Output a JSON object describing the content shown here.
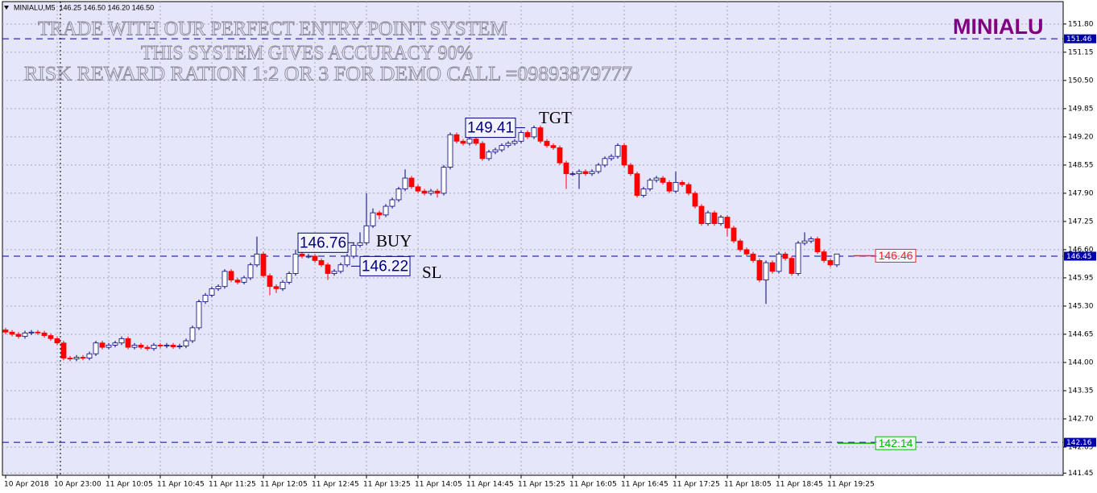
{
  "chart_data": {
    "type": "candlestick",
    "header": "MINIALU,M5  146.25 146.50 146.20 146.50",
    "symbol": "MINIALU",
    "watermark": [
      "TRADE WITH OUR PERFECT ENTRY POINT SYSTEM",
      "THIS SYSTEM GIVES ACCURACY 90%",
      "RISK REWARD RATION 1:2 OR 3 FOR DEMO CALL =09893879777"
    ],
    "categories": [
      "10 Apr 2018",
      null,
      null,
      null,
      null,
      null,
      null,
      null,
      "10 Apr 23:00",
      null,
      null,
      null,
      null,
      null,
      null,
      null,
      "11 Apr 10:05",
      null,
      null,
      null,
      null,
      null,
      null,
      null,
      "11 Apr 10:45",
      null,
      null,
      null,
      null,
      null,
      null,
      null,
      "11 Apr 11:25",
      null,
      null,
      null,
      null,
      null,
      null,
      null,
      "11 Apr 12:05",
      null,
      null,
      null,
      null,
      null,
      null,
      null,
      "11 Apr 12:45",
      null,
      null,
      null,
      null,
      null,
      null,
      null,
      "11 Apr 13:25",
      null,
      null,
      null,
      null,
      null,
      null,
      null,
      "11 Apr 14:05",
      null,
      null,
      null,
      null,
      null,
      null,
      null,
      "11 Apr 14:45",
      null,
      null,
      null,
      null,
      null,
      null,
      null,
      "11 Apr 15:25",
      null,
      null,
      null,
      null,
      null,
      null,
      null,
      "11 Apr 16:05",
      null,
      null,
      null,
      null,
      null,
      null,
      null,
      "11 Apr 16:45",
      null,
      null,
      null,
      null,
      null,
      null,
      null,
      "11 Apr 17:25",
      null,
      null,
      null,
      null,
      null,
      null,
      null,
      "11 Apr 18:05",
      null,
      null,
      null,
      null,
      null,
      null,
      null,
      "11 Apr 18:45",
      null,
      null,
      null,
      null,
      null,
      null,
      null,
      "11 Apr 19:25",
      null
    ],
    "open": [
      144.75,
      144.7,
      144.65,
      144.6,
      144.68,
      144.7,
      144.68,
      144.62,
      144.55,
      144.45,
      144.1,
      144.08,
      144.12,
      144.1,
      144.2,
      144.45,
      144.35,
      144.4,
      144.45,
      144.55,
      144.35,
      144.4,
      144.35,
      144.32,
      144.4,
      144.38,
      144.4,
      144.36,
      144.38,
      144.5,
      144.8,
      145.4,
      145.55,
      145.7,
      145.75,
      146.1,
      145.9,
      145.85,
      145.95,
      146.25,
      146.5,
      146.0,
      145.75,
      145.7,
      145.85,
      146.05,
      146.5,
      146.45,
      146.45,
      146.35,
      146.25,
      146.05,
      146.1,
      146.25,
      146.45,
      146.7,
      146.76,
      147.15,
      147.45,
      147.4,
      147.6,
      147.75,
      148.0,
      148.25,
      148.05,
      147.95,
      147.9,
      147.95,
      147.9,
      148.5,
      149.25,
      149.1,
      149.05,
      149.15,
      149.05,
      148.7,
      148.85,
      148.9,
      149.0,
      149.05,
      149.1,
      149.3,
      149.2,
      149.41,
      149.1,
      149.0,
      148.95,
      148.6,
      148.35,
      148.35,
      148.4,
      148.35,
      148.4,
      148.55,
      148.7,
      148.75,
      149.0,
      148.55,
      148.35,
      147.85,
      148.0,
      148.2,
      148.25,
      148.15,
      147.95,
      148.15,
      148.1,
      147.9,
      147.6,
      147.2,
      147.45,
      147.2,
      147.35,
      147.1,
      146.8,
      146.6,
      146.5,
      146.35,
      145.9,
      146.3,
      146.1,
      146.5,
      146.4,
      146.05,
      146.75,
      146.8,
      146.85,
      146.55,
      146.35,
      146.25
    ],
    "high": [
      144.8,
      144.75,
      144.7,
      144.73,
      144.75,
      144.75,
      144.73,
      144.67,
      144.6,
      144.5,
      144.15,
      144.17,
      144.17,
      144.25,
      144.5,
      144.5,
      144.45,
      144.5,
      144.6,
      144.6,
      144.45,
      144.45,
      144.4,
      144.45,
      144.45,
      144.45,
      144.45,
      144.43,
      144.55,
      144.85,
      145.45,
      145.6,
      145.75,
      145.8,
      146.15,
      146.15,
      145.95,
      146.0,
      146.3,
      146.9,
      146.55,
      146.05,
      145.8,
      145.9,
      146.1,
      146.6,
      146.55,
      146.5,
      146.5,
      146.4,
      146.3,
      146.15,
      146.3,
      146.5,
      146.75,
      147.0,
      147.9,
      147.55,
      147.5,
      147.65,
      147.8,
      148.05,
      148.45,
      148.3,
      148.1,
      148.0,
      148.0,
      148.0,
      148.55,
      149.3,
      149.3,
      149.15,
      149.2,
      149.2,
      149.1,
      148.9,
      148.95,
      149.05,
      149.1,
      149.15,
      149.35,
      149.35,
      149.46,
      149.46,
      149.15,
      149.05,
      149.0,
      148.65,
      148.4,
      148.45,
      148.45,
      148.45,
      148.6,
      148.75,
      148.8,
      149.05,
      149.05,
      148.6,
      148.4,
      148.05,
      148.25,
      148.3,
      148.3,
      148.2,
      148.4,
      148.2,
      148.15,
      147.95,
      147.65,
      147.5,
      147.5,
      147.4,
      147.4,
      147.15,
      146.85,
      146.65,
      146.55,
      146.4,
      146.35,
      146.35,
      146.55,
      146.55,
      146.45,
      146.8,
      147.0,
      146.9,
      146.9,
      146.6,
      146.4,
      146.5
    ],
    "low": [
      144.65,
      144.6,
      144.55,
      144.55,
      144.63,
      144.63,
      144.57,
      144.5,
      144.4,
      144.05,
      144.03,
      144.03,
      144.05,
      144.05,
      144.15,
      144.3,
      144.3,
      144.35,
      144.4,
      144.3,
      144.3,
      144.3,
      144.27,
      144.27,
      144.33,
      144.33,
      144.31,
      144.31,
      144.33,
      144.45,
      144.75,
      145.35,
      145.5,
      145.65,
      145.7,
      145.85,
      145.8,
      145.8,
      145.9,
      146.2,
      145.95,
      145.55,
      145.6,
      145.65,
      145.8,
      146.0,
      146.4,
      146.4,
      146.3,
      146.2,
      145.9,
      146.0,
      146.05,
      146.2,
      146.4,
      146.65,
      146.7,
      147.1,
      147.3,
      147.35,
      147.55,
      147.7,
      147.95,
      148.0,
      147.9,
      147.85,
      147.85,
      147.8,
      147.85,
      148.45,
      149.05,
      149.0,
      149.0,
      149.0,
      148.65,
      148.65,
      148.8,
      148.85,
      148.95,
      149.0,
      149.05,
      149.15,
      149.15,
      149.05,
      148.95,
      148.9,
      148.55,
      148.0,
      148.3,
      148.0,
      148.3,
      148.3,
      148.35,
      148.5,
      148.65,
      148.7,
      148.5,
      148.3,
      147.8,
      147.8,
      147.95,
      148.15,
      148.1,
      147.9,
      147.9,
      148.05,
      147.85,
      147.55,
      147.15,
      147.15,
      147.15,
      147.15,
      146.9,
      146.75,
      146.55,
      146.45,
      146.3,
      145.85,
      145.35,
      146.05,
      146.05,
      146.35,
      146.0,
      146.0,
      146.7,
      146.75,
      146.5,
      146.3,
      146.2,
      146.2
    ],
    "close": [
      144.7,
      144.65,
      144.6,
      144.68,
      144.7,
      144.68,
      144.62,
      144.55,
      144.45,
      144.1,
      144.08,
      144.12,
      144.1,
      144.2,
      144.45,
      144.35,
      144.4,
      144.45,
      144.55,
      144.35,
      144.4,
      144.35,
      144.32,
      144.4,
      144.38,
      144.4,
      144.36,
      144.38,
      144.5,
      144.8,
      145.4,
      145.55,
      145.7,
      145.75,
      146.1,
      145.9,
      145.85,
      145.95,
      146.25,
      146.5,
      146.0,
      145.75,
      145.7,
      145.85,
      146.05,
      146.5,
      146.45,
      146.45,
      146.35,
      146.25,
      146.05,
      146.1,
      146.25,
      146.45,
      146.7,
      146.76,
      147.15,
      147.45,
      147.4,
      147.6,
      147.75,
      148.0,
      148.25,
      148.05,
      147.95,
      147.9,
      147.95,
      147.9,
      148.5,
      149.25,
      149.1,
      149.05,
      149.15,
      149.05,
      148.7,
      148.85,
      148.9,
      149.0,
      149.05,
      149.1,
      149.3,
      149.2,
      149.41,
      149.1,
      149.0,
      148.95,
      148.6,
      148.35,
      148.35,
      148.4,
      148.35,
      148.4,
      148.55,
      148.7,
      148.75,
      149.0,
      148.55,
      148.35,
      147.85,
      148.0,
      148.2,
      148.25,
      148.15,
      147.95,
      148.15,
      148.1,
      147.9,
      147.6,
      147.2,
      147.45,
      147.2,
      147.35,
      147.1,
      146.8,
      146.6,
      146.5,
      146.35,
      145.9,
      146.3,
      146.1,
      146.5,
      146.4,
      146.05,
      146.75,
      146.8,
      146.85,
      146.55,
      146.35,
      146.25,
      146.5
    ],
    "up_color": "#ffffff",
    "up_border": "#000080",
    "down_color": "#ff0000",
    "ylim": [
      141.4,
      152.02
    ],
    "yticks": [
      {
        "value": 151.8,
        "label": "151.80"
      },
      {
        "value": 151.15,
        "label": "151.15"
      },
      {
        "value": 150.5,
        "label": "150.50"
      },
      {
        "value": 149.85,
        "label": "149.85"
      },
      {
        "value": 149.2,
        "label": "149.20"
      },
      {
        "value": 148.55,
        "label": "148.55"
      },
      {
        "value": 147.9,
        "label": "147.90"
      },
      {
        "value": 147.25,
        "label": "147.25"
      },
      {
        "value": 146.6,
        "label": "146.60"
      },
      {
        "value": 145.95,
        "label": "145.95"
      },
      {
        "value": 145.3,
        "label": "145.30"
      },
      {
        "value": 144.65,
        "label": "144.65"
      },
      {
        "value": 144,
        "label": "144.00"
      },
      {
        "value": 143.35,
        "label": "143.35"
      },
      {
        "value": 142.7,
        "label": "142.70"
      },
      {
        "value": 142.05,
        "label": "142.05"
      },
      {
        "value": 141.45,
        "label": "141.45"
      }
    ],
    "grid": true,
    "hlines": [
      {
        "value": 151.46,
        "label": "151.46",
        "color": "#0000aa"
      },
      {
        "value": 146.45,
        "label": "146.45",
        "color": "#0000aa"
      },
      {
        "value": 142.16,
        "label": "142.16",
        "color": "#0000aa"
      }
    ],
    "price_labels": [
      {
        "value": 146.46,
        "label": "146.46",
        "color": "#ff2020"
      },
      {
        "value": 142.14,
        "label": "142.14",
        "color": "#00bb00"
      }
    ],
    "annotations": [
      {
        "value": 149.41,
        "label": "149.41"
      },
      {
        "value": 146.76,
        "label": "146.76"
      },
      {
        "value": 146.22,
        "label": "146.22"
      }
    ],
    "text_annotations": [
      "TGT",
      "BUY",
      "SL"
    ]
  }
}
